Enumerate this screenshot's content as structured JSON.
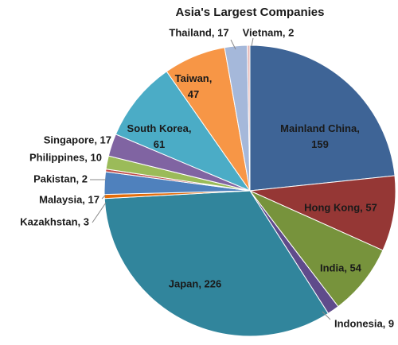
{
  "chart_data": {
    "type": "pie",
    "title": "Asia's Largest Companies",
    "values": [
      159,
      57,
      54,
      9,
      226,
      3,
      17,
      2,
      10,
      17,
      61,
      47,
      17,
      2
    ],
    "value_labels": [
      "Mainland China, 159",
      "Hong Kong, 57",
      "India, 54",
      "Indonesia, 9",
      "Japan, 226",
      "Kazakhstan, 3",
      "Malaysia, 17",
      "Pakistan, 2",
      "Philippines, 10",
      "Singapore, 17",
      "South Korea, 61",
      "Taiwan, 47",
      "Thailand, 17",
      "Vietnam, 2"
    ],
    "colors": [
      "#3e6496",
      "#953735",
      "#77933c",
      "#5f4b8b",
      "#31859c",
      "#e46c0a",
      "#4f81bd",
      "#c0504d",
      "#9bbb59",
      "#8064a2",
      "#4bacc6",
      "#f79646",
      "#a5b8da",
      "#e6b9b8"
    ]
  }
}
